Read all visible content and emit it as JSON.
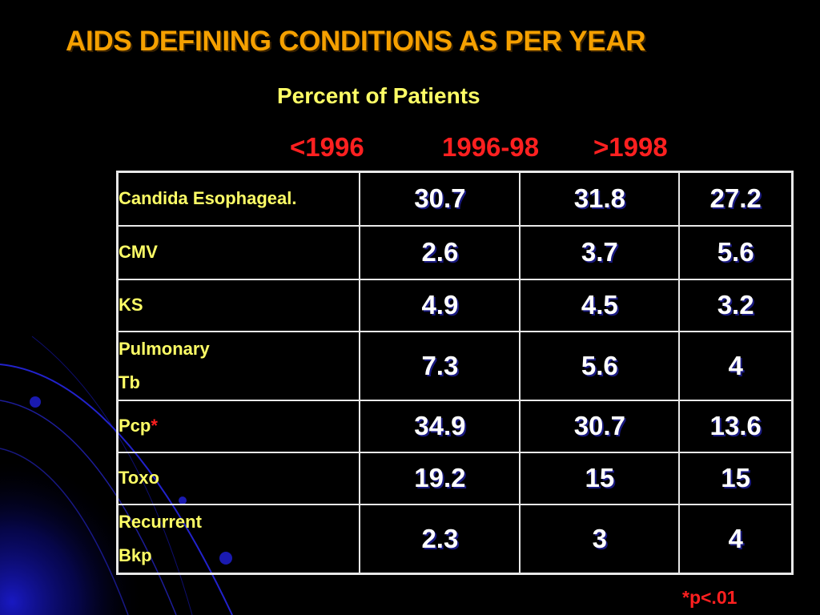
{
  "slide": {
    "title": "AIDS DEFINING CONDITIONS AS PER YEAR",
    "subtitle": "Percent of Patients",
    "column_headers": [
      "<1996",
      "1996-98",
      ">1998"
    ],
    "footnote": "*p<.01",
    "colors": {
      "background": "#000000",
      "title": "#f5a000",
      "subtitle": "#ffff66",
      "column_header": "#ff2020",
      "row_label": "#ffff66",
      "cell_value": "#ffffff",
      "table_border": "#e8e8e8",
      "decoration": "#1a1aff"
    }
  },
  "table": {
    "rows": [
      {
        "label_lines": [
          "Candida Esophageal."
        ],
        "values": [
          "30.7",
          "31.8",
          "27.2"
        ]
      },
      {
        "label_lines": [
          "CMV"
        ],
        "values": [
          "2.6",
          "3.7",
          "5.6"
        ]
      },
      {
        "label_lines": [
          "KS"
        ],
        "values": [
          "4.9",
          "4.5",
          "3.2"
        ]
      },
      {
        "label_lines": [
          "Pulmonary",
          "Tb"
        ],
        "values": [
          "7.3",
          "5.6",
          "4"
        ]
      },
      {
        "label_lines": [
          "Pcp"
        ],
        "marker": "*",
        "values": [
          "34.9",
          "30.7",
          "13.6"
        ]
      },
      {
        "label_lines": [
          "Toxo"
        ],
        "values": [
          "19.2",
          "15",
          "15"
        ]
      },
      {
        "label_lines": [
          "Recurrent",
          "Bkp"
        ],
        "values": [
          "2.3",
          "3",
          "4"
        ]
      }
    ]
  }
}
